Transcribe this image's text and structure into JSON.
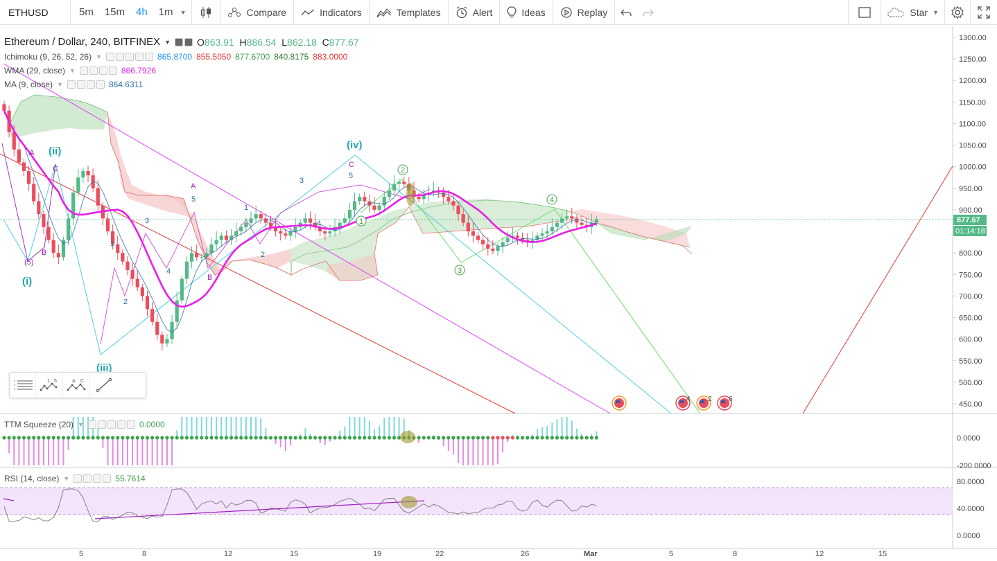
{
  "toolbar": {
    "symbol": "ETHUSD",
    "intervals": [
      {
        "label": "5m",
        "active": false
      },
      {
        "label": "15m",
        "active": false
      },
      {
        "label": "4h",
        "active": true
      },
      {
        "label": "1m",
        "active": false
      }
    ],
    "compare_label": "Compare",
    "indicators_label": "Indicators",
    "templates_label": "Templates",
    "alert_label": "Alert",
    "ideas_label": "Ideas",
    "replay_label": "Replay",
    "star_label": "Star"
  },
  "legend": {
    "title": "Ethereum / Dollar, 240, BITFINEX",
    "ohlc": {
      "o_label": "O",
      "o": "863.91",
      "h_label": "H",
      "h": "886.54",
      "l_label": "L",
      "l": "862.18",
      "c_label": "C",
      "c": "877.67"
    },
    "ichimoku": {
      "label": "Ichimoku (9, 26, 52, 26)",
      "values": [
        "865.8700",
        "855.5050",
        "877.6700",
        "840.8175",
        "883.0000"
      ],
      "colors": [
        "#2196f3",
        "#e53935",
        "#43a047",
        "#2e7d32",
        "#e53935"
      ]
    },
    "wma": {
      "label": "WMA (29, close)",
      "value": "866.7926",
      "color": "#e91ee9"
    },
    "ma": {
      "label": "MA (9, close)",
      "value": "864.6311",
      "color": "#2f6fa5"
    }
  },
  "price_axis": {
    "ticks": [
      "1300.00",
      "1250.00",
      "1200.00",
      "1150.00",
      "1100.00",
      "1050.00",
      "1000.00",
      "950.00",
      "900.00",
      "850.00",
      "800.00",
      "750.00",
      "700.00",
      "650.00",
      "600.00",
      "550.00",
      "500.00",
      "450.00"
    ],
    "last_price": "877.67",
    "countdown": "01:14:18",
    "last_price_color": "#53b987"
  },
  "time_axis": {
    "ticks": [
      "5",
      "8",
      "12",
      "15",
      "19",
      "22",
      "26",
      "Mar",
      "5",
      "8",
      "12",
      "15"
    ]
  },
  "wave_labels": {
    "i": "(i)",
    "ii": "(ii)",
    "iii": "(iii)",
    "iv": "(iv)",
    "A": "A",
    "B": "B",
    "C": "C",
    "n1": "1",
    "n2": "2",
    "n3": "3",
    "n4": "4",
    "n5": "5",
    "c1": "1",
    "c2": "2",
    "c3": "3",
    "c4": "4"
  },
  "event_badges": [
    "4",
    "2",
    "6"
  ],
  "ttm": {
    "label": "TTM Squeeze (20)",
    "value": "0.0000",
    "axis": [
      "0.0000",
      "-200.0000"
    ]
  },
  "rsi": {
    "label": "RSI (14, close)",
    "value": "55.7614",
    "axis": [
      "80.0000",
      "40.0000",
      "0.0000"
    ]
  },
  "chart_data": {
    "type": "candlestick",
    "symbol": "Ethereum / Dollar, 240, BITFINEX",
    "timeframe": "240",
    "ylim": [
      430,
      1310
    ],
    "last_close": 877.67,
    "approx_closes": [
      1130,
      1080,
      1040,
      1010,
      990,
      960,
      920,
      890,
      860,
      830,
      800,
      790,
      830,
      880,
      940,
      975,
      990,
      980,
      950,
      910,
      880,
      850,
      820,
      800,
      780,
      760,
      740,
      720,
      700,
      670,
      640,
      610,
      590,
      600,
      640,
      690,
      740,
      780,
      800,
      790,
      790,
      800,
      820,
      830,
      840,
      830,
      840,
      850,
      860,
      870,
      880,
      890,
      880,
      870,
      860,
      850,
      845,
      840,
      850,
      860,
      870,
      880,
      870,
      860,
      850,
      845,
      850,
      860,
      870,
      880,
      900,
      920,
      930,
      920,
      910,
      900,
      910,
      930,
      945,
      960,
      965,
      960,
      945,
      930,
      925,
      935,
      940,
      945,
      940,
      930,
      920,
      910,
      890,
      870,
      850,
      840,
      830,
      820,
      810,
      805,
      815,
      825,
      835,
      840,
      835,
      830,
      825,
      830,
      840,
      845,
      850,
      860,
      870,
      880,
      885,
      880,
      870,
      865,
      860,
      870,
      878
    ]
  }
}
